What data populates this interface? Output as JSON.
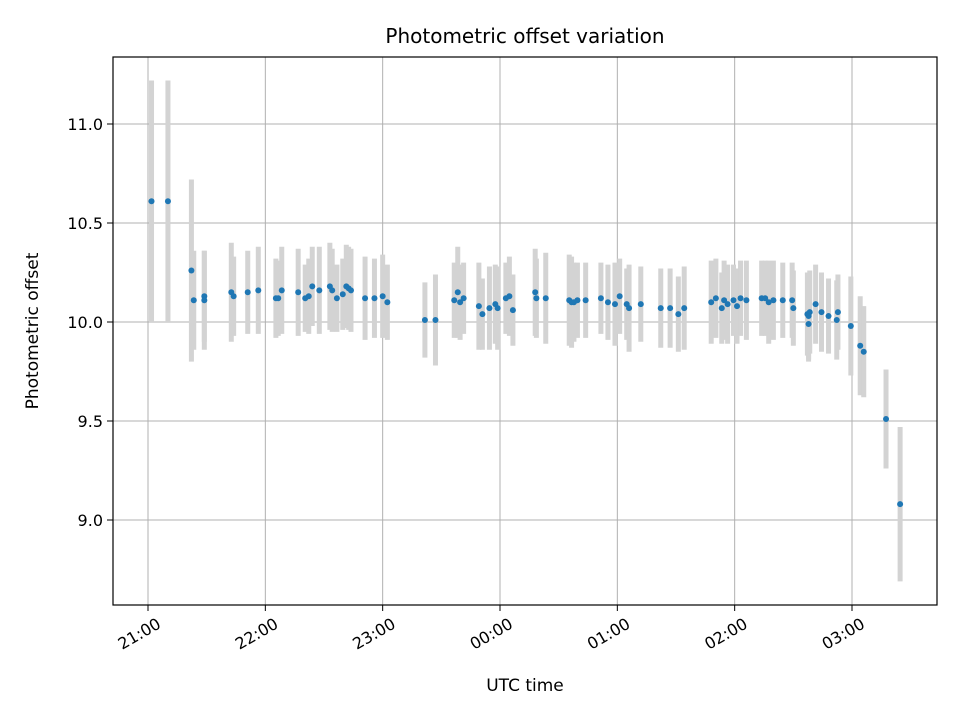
{
  "chart_data": {
    "type": "scatter",
    "title": "Photometric offset variation",
    "xlabel": "UTC time",
    "ylabel": "Photometric offset",
    "x_unit": "UTC hour (continuous, 24 = 00:00 next day)",
    "xlim": [
      20.71,
      27.71
    ],
    "ylim": [
      8.58,
      11.34
    ],
    "grid": true,
    "x_ticks": [
      {
        "value": 21,
        "label": "21:00"
      },
      {
        "value": 22,
        "label": "22:00"
      },
      {
        "value": 23,
        "label": "23:00"
      },
      {
        "value": 24,
        "label": "00:00"
      },
      {
        "value": 25,
        "label": "01:00"
      },
      {
        "value": 26,
        "label": "02:00"
      },
      {
        "value": 27,
        "label": "03:00"
      }
    ],
    "y_ticks": [
      {
        "value": 9.0,
        "label": "9.0"
      },
      {
        "value": 9.5,
        "label": "9.5"
      },
      {
        "value": 10.0,
        "label": "10.0"
      },
      {
        "value": 10.5,
        "label": "10.5"
      },
      {
        "value": 11.0,
        "label": "11.0"
      }
    ],
    "colors": {
      "marker": "#1f77b4",
      "errorbar": "#d3d3d3",
      "grid": "#b0b0b0"
    },
    "series": [
      {
        "marker": "dot",
        "points": [
          [
            21.03,
            10.61,
            0.61
          ],
          [
            21.17,
            10.61,
            0.61
          ],
          [
            21.37,
            10.26,
            0.46
          ],
          [
            21.39,
            10.11,
            0.25
          ],
          [
            21.48,
            10.13,
            0.23
          ],
          [
            21.48,
            10.11,
            0.25
          ],
          [
            21.71,
            10.15,
            0.25
          ],
          [
            21.73,
            10.13,
            0.2
          ],
          [
            21.85,
            10.15,
            0.21
          ],
          [
            21.94,
            10.16,
            0.22
          ],
          [
            22.09,
            10.12,
            0.2
          ],
          [
            22.11,
            10.12,
            0.19
          ],
          [
            22.14,
            10.16,
            0.22
          ],
          [
            22.28,
            10.15,
            0.22
          ],
          [
            22.34,
            10.12,
            0.17
          ],
          [
            22.37,
            10.13,
            0.19
          ],
          [
            22.4,
            10.18,
            0.2
          ],
          [
            22.46,
            10.16,
            0.22
          ],
          [
            22.55,
            10.18,
            0.22
          ],
          [
            22.57,
            10.16,
            0.21
          ],
          [
            22.61,
            10.12,
            0.17
          ],
          [
            22.66,
            10.14,
            0.18
          ],
          [
            22.69,
            10.18,
            0.21
          ],
          [
            22.71,
            10.17,
            0.21
          ],
          [
            22.73,
            10.16,
            0.21
          ],
          [
            22.85,
            10.12,
            0.21
          ],
          [
            22.93,
            10.12,
            0.2
          ],
          [
            23.0,
            10.13,
            0.21
          ],
          [
            23.04,
            10.1,
            0.19
          ],
          [
            23.36,
            10.01,
            0.19
          ],
          [
            23.45,
            10.01,
            0.23
          ],
          [
            23.61,
            10.11,
            0.19
          ],
          [
            23.64,
            10.15,
            0.23
          ],
          [
            23.66,
            10.1,
            0.19
          ],
          [
            23.69,
            10.12,
            0.18
          ],
          [
            23.82,
            10.08,
            0.22
          ],
          [
            23.85,
            10.04,
            0.18
          ],
          [
            23.91,
            10.07,
            0.21
          ],
          [
            23.96,
            10.09,
            0.2
          ],
          [
            23.98,
            10.07,
            0.21
          ],
          [
            24.05,
            10.12,
            0.18
          ],
          [
            24.08,
            10.13,
            0.2
          ],
          [
            24.11,
            10.06,
            0.18
          ],
          [
            24.3,
            10.15,
            0.22
          ],
          [
            24.31,
            10.12,
            0.2
          ],
          [
            24.39,
            10.12,
            0.23
          ],
          [
            24.59,
            10.11,
            0.23
          ],
          [
            24.61,
            10.1,
            0.23
          ],
          [
            24.63,
            10.1,
            0.2
          ],
          [
            24.66,
            10.11,
            0.19
          ],
          [
            24.73,
            10.11,
            0.19
          ],
          [
            24.86,
            10.12,
            0.18
          ],
          [
            24.92,
            10.1,
            0.19
          ],
          [
            24.98,
            10.09,
            0.21
          ],
          [
            25.02,
            10.13,
            0.19
          ],
          [
            25.08,
            10.09,
            0.18
          ],
          [
            25.1,
            10.07,
            0.22
          ],
          [
            25.2,
            10.09,
            0.19
          ],
          [
            25.37,
            10.07,
            0.2
          ],
          [
            25.45,
            10.07,
            0.2
          ],
          [
            25.52,
            10.04,
            0.19
          ],
          [
            25.57,
            10.07,
            0.21
          ],
          [
            25.8,
            10.1,
            0.21
          ],
          [
            25.84,
            10.12,
            0.2
          ],
          [
            25.89,
            10.07,
            0.18
          ],
          [
            25.91,
            10.11,
            0.2
          ],
          [
            25.94,
            10.09,
            0.2
          ],
          [
            25.99,
            10.11,
            0.18
          ],
          [
            26.02,
            10.08,
            0.19
          ],
          [
            26.05,
            10.12,
            0.19
          ],
          [
            26.1,
            10.11,
            0.2
          ],
          [
            26.23,
            10.12,
            0.19
          ],
          [
            26.26,
            10.12,
            0.19
          ],
          [
            26.29,
            10.1,
            0.21
          ],
          [
            26.33,
            10.11,
            0.2
          ],
          [
            26.41,
            10.11,
            0.19
          ],
          [
            26.49,
            10.11,
            0.19
          ],
          [
            26.5,
            10.07,
            0.19
          ],
          [
            26.62,
            10.04,
            0.21
          ],
          [
            26.63,
            10.03,
            0.22
          ],
          [
            26.64,
            10.05,
            0.21
          ],
          [
            26.63,
            9.99,
            0.19
          ],
          [
            26.69,
            10.09,
            0.2
          ],
          [
            26.74,
            10.05,
            0.2
          ],
          [
            26.8,
            10.03,
            0.19
          ],
          [
            26.87,
            10.01,
            0.2
          ],
          [
            26.88,
            10.05,
            0.19
          ],
          [
            26.99,
            9.98,
            0.25
          ],
          [
            27.07,
            9.88,
            0.25
          ],
          [
            27.1,
            9.85,
            0.23
          ],
          [
            27.29,
            9.51,
            0.25
          ],
          [
            27.41,
            9.08,
            0.39
          ]
        ]
      }
    ]
  }
}
